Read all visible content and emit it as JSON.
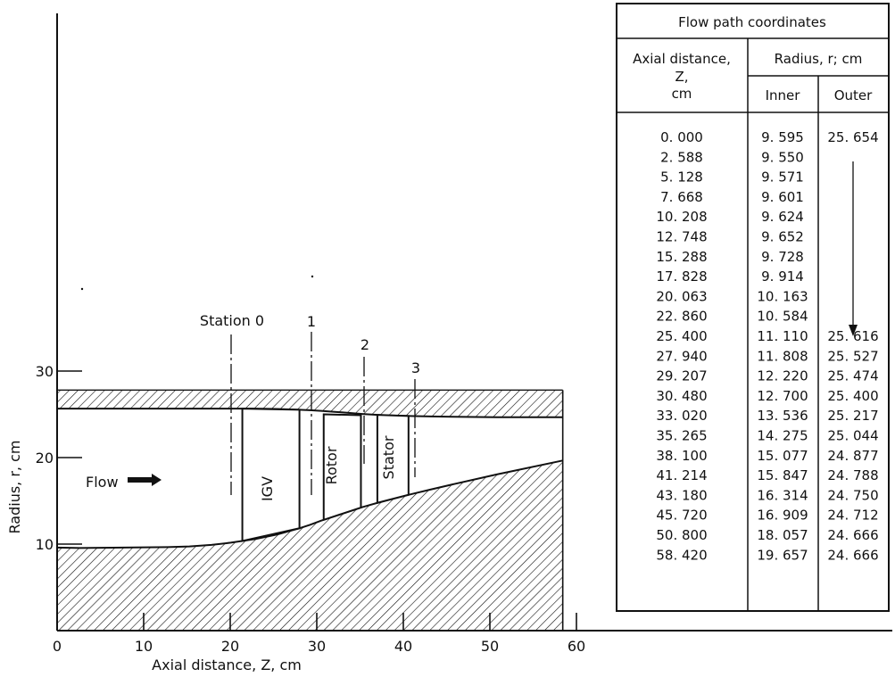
{
  "diagram": {
    "axis": {
      "x_label": "Axial distance, Z, cm",
      "y_label": "Radius, r, cm",
      "x_ticks": [
        "0",
        "10",
        "20",
        "30",
        "40",
        "50",
        "60"
      ],
      "y_ticks": [
        "10",
        "20",
        "30"
      ]
    },
    "flow_label": "Flow",
    "stations": [
      "Station 0",
      "1",
      "2",
      "3"
    ],
    "blade_rows": [
      "IGV",
      "Rotor",
      "Stator"
    ]
  },
  "table": {
    "title": "Flow path coordinates",
    "col_axial_header": "Axial distance, Z, cm",
    "col_axial_lines": [
      "Axial distance,",
      "Z,",
      "cm"
    ],
    "col_radius_header": "Radius, r; cm",
    "col_inner": "Inner",
    "col_outer": "Outer",
    "rows": [
      {
        "z": "0. 000",
        "inner": "9. 595",
        "outer": "25. 654"
      },
      {
        "z": "2. 588",
        "inner": "9. 550",
        "outer": ""
      },
      {
        "z": "5. 128",
        "inner": "9. 571",
        "outer": ""
      },
      {
        "z": "7. 668",
        "inner": "9. 601",
        "outer": ""
      },
      {
        "z": "10. 208",
        "inner": "9. 624",
        "outer": ""
      },
      {
        "z": "12. 748",
        "inner": "9. 652",
        "outer": ""
      },
      {
        "z": "15. 288",
        "inner": "9. 728",
        "outer": ""
      },
      {
        "z": "17. 828",
        "inner": "9. 914",
        "outer": ""
      },
      {
        "z": "20. 063",
        "inner": "10. 163",
        "outer": ""
      },
      {
        "z": "22. 860",
        "inner": "10. 584",
        "outer": ""
      },
      {
        "z": "25. 400",
        "inner": "11. 110",
        "outer": "25. 616"
      },
      {
        "z": "27. 940",
        "inner": "11. 808",
        "outer": "25. 527"
      },
      {
        "z": "29. 207",
        "inner": "12. 220",
        "outer": "25. 474"
      },
      {
        "z": "30. 480",
        "inner": "12. 700",
        "outer": "25. 400"
      },
      {
        "z": "33. 020",
        "inner": "13. 536",
        "outer": "25. 217"
      },
      {
        "z": "35. 265",
        "inner": "14. 275",
        "outer": "25. 044"
      },
      {
        "z": "38. 100",
        "inner": "15. 077",
        "outer": "24. 877"
      },
      {
        "z": "41. 214",
        "inner": "15. 847",
        "outer": "24. 788"
      },
      {
        "z": "43. 180",
        "inner": "16. 314",
        "outer": "24. 750"
      },
      {
        "z": "45. 720",
        "inner": "16. 909",
        "outer": "24. 712"
      },
      {
        "z": "50. 800",
        "inner": "18. 057",
        "outer": "24. 666"
      },
      {
        "z": "58. 420",
        "inner": "19. 657",
        "outer": "24. 666"
      }
    ]
  }
}
